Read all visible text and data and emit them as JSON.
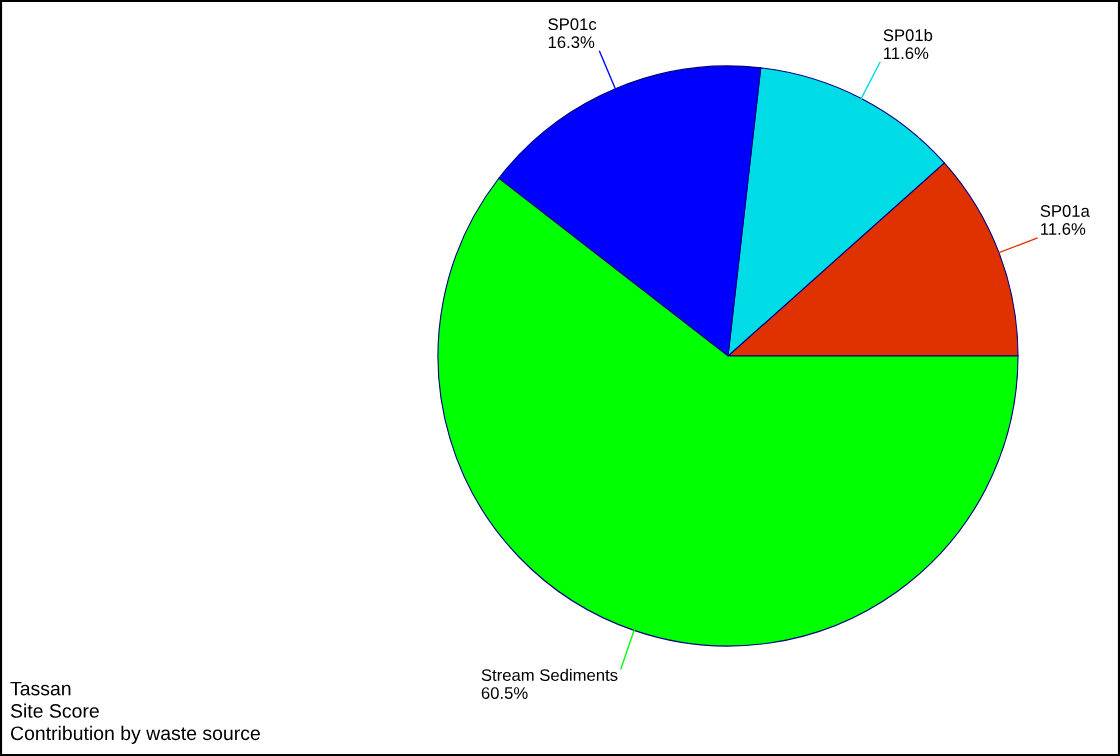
{
  "chart_data": {
    "type": "pie",
    "categories": [
      "SP01a",
      "SP01b",
      "SP01c",
      "Stream Sediments"
    ],
    "values": [
      11.6,
      11.6,
      16.3,
      60.5
    ],
    "colors": [
      "#e03200",
      "#00dce6",
      "#0000ff",
      "#00ff00"
    ],
    "value_labels": [
      "11.6%",
      "11.6%",
      "16.3%",
      "60.5%"
    ],
    "annotations": [
      "Tassan",
      "Site Score",
      "Contribution by waste source"
    ],
    "legend": false
  }
}
